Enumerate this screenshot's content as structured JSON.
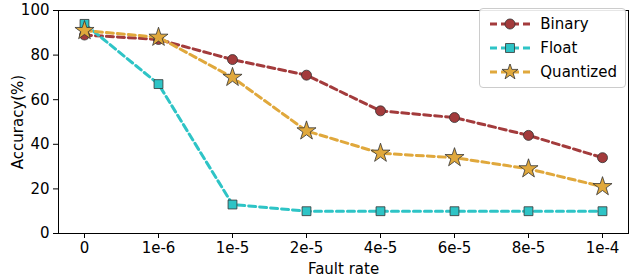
{
  "chart_data": {
    "type": "line",
    "x_label": "Fault rate",
    "y_label": "Accuracy(%)",
    "categories": [
      "0",
      "1e-6",
      "1e-5",
      "2e-5",
      "4e-5",
      "6e-5",
      "8e-5",
      "1e-4"
    ],
    "series": [
      {
        "name": "Binary",
        "color": "#a33b3c",
        "marker": "circle",
        "line_style": "dashed",
        "values": [
          89,
          87,
          78,
          71,
          55,
          52,
          44,
          34
        ]
      },
      {
        "name": "Float",
        "color": "#2ec4c6",
        "marker": "square",
        "line_style": "dashed",
        "values": [
          94,
          67,
          13,
          10,
          10,
          10,
          10,
          10
        ]
      },
      {
        "name": "Quantized",
        "color": "#e0a83c",
        "marker": "star",
        "line_style": "dashed",
        "values": [
          91,
          88,
          70,
          46,
          36,
          34,
          29,
          21
        ]
      }
    ],
    "ylim": [
      0,
      100
    ],
    "yticks": [
      0,
      20,
      40,
      60,
      80,
      100
    ],
    "grid": false,
    "legend": "top-right"
  }
}
